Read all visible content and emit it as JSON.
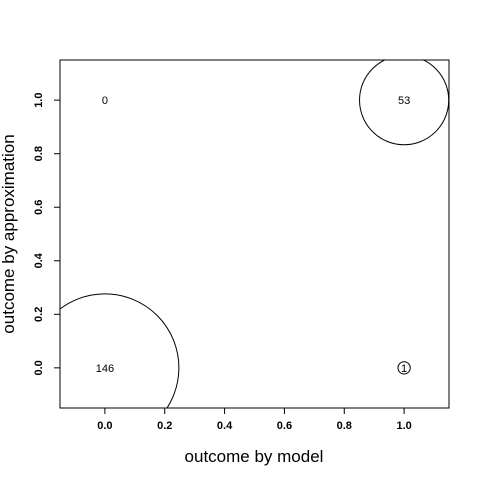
{
  "chart_data": {
    "type": "scatter",
    "title": "",
    "xlabel": "outcome by model",
    "ylabel": "outcome by approximation",
    "xlim": [
      -0.15,
      1.15
    ],
    "ylim": [
      -0.15,
      1.15
    ],
    "x_ticks": [
      0.0,
      0.2,
      0.4,
      0.6,
      0.8,
      1.0
    ],
    "x_tick_labels": [
      "0.0",
      "0.2",
      "0.4",
      "0.6",
      "0.8",
      "1.0"
    ],
    "y_ticks": [
      0.0,
      0.2,
      0.4,
      0.6,
      0.8,
      1.0
    ],
    "y_tick_labels": [
      "0.0",
      "0.2",
      "0.4",
      "0.6",
      "0.8",
      "1.0"
    ],
    "grid": false,
    "points": [
      {
        "x": 0,
        "y": 0,
        "count": 146,
        "label": "146"
      },
      {
        "x": 1,
        "y": 0,
        "count": 1,
        "label": "1"
      },
      {
        "x": 0,
        "y": 1,
        "count": 0,
        "label": "0"
      },
      {
        "x": 1,
        "y": 1,
        "count": 53,
        "label": "53"
      }
    ]
  }
}
